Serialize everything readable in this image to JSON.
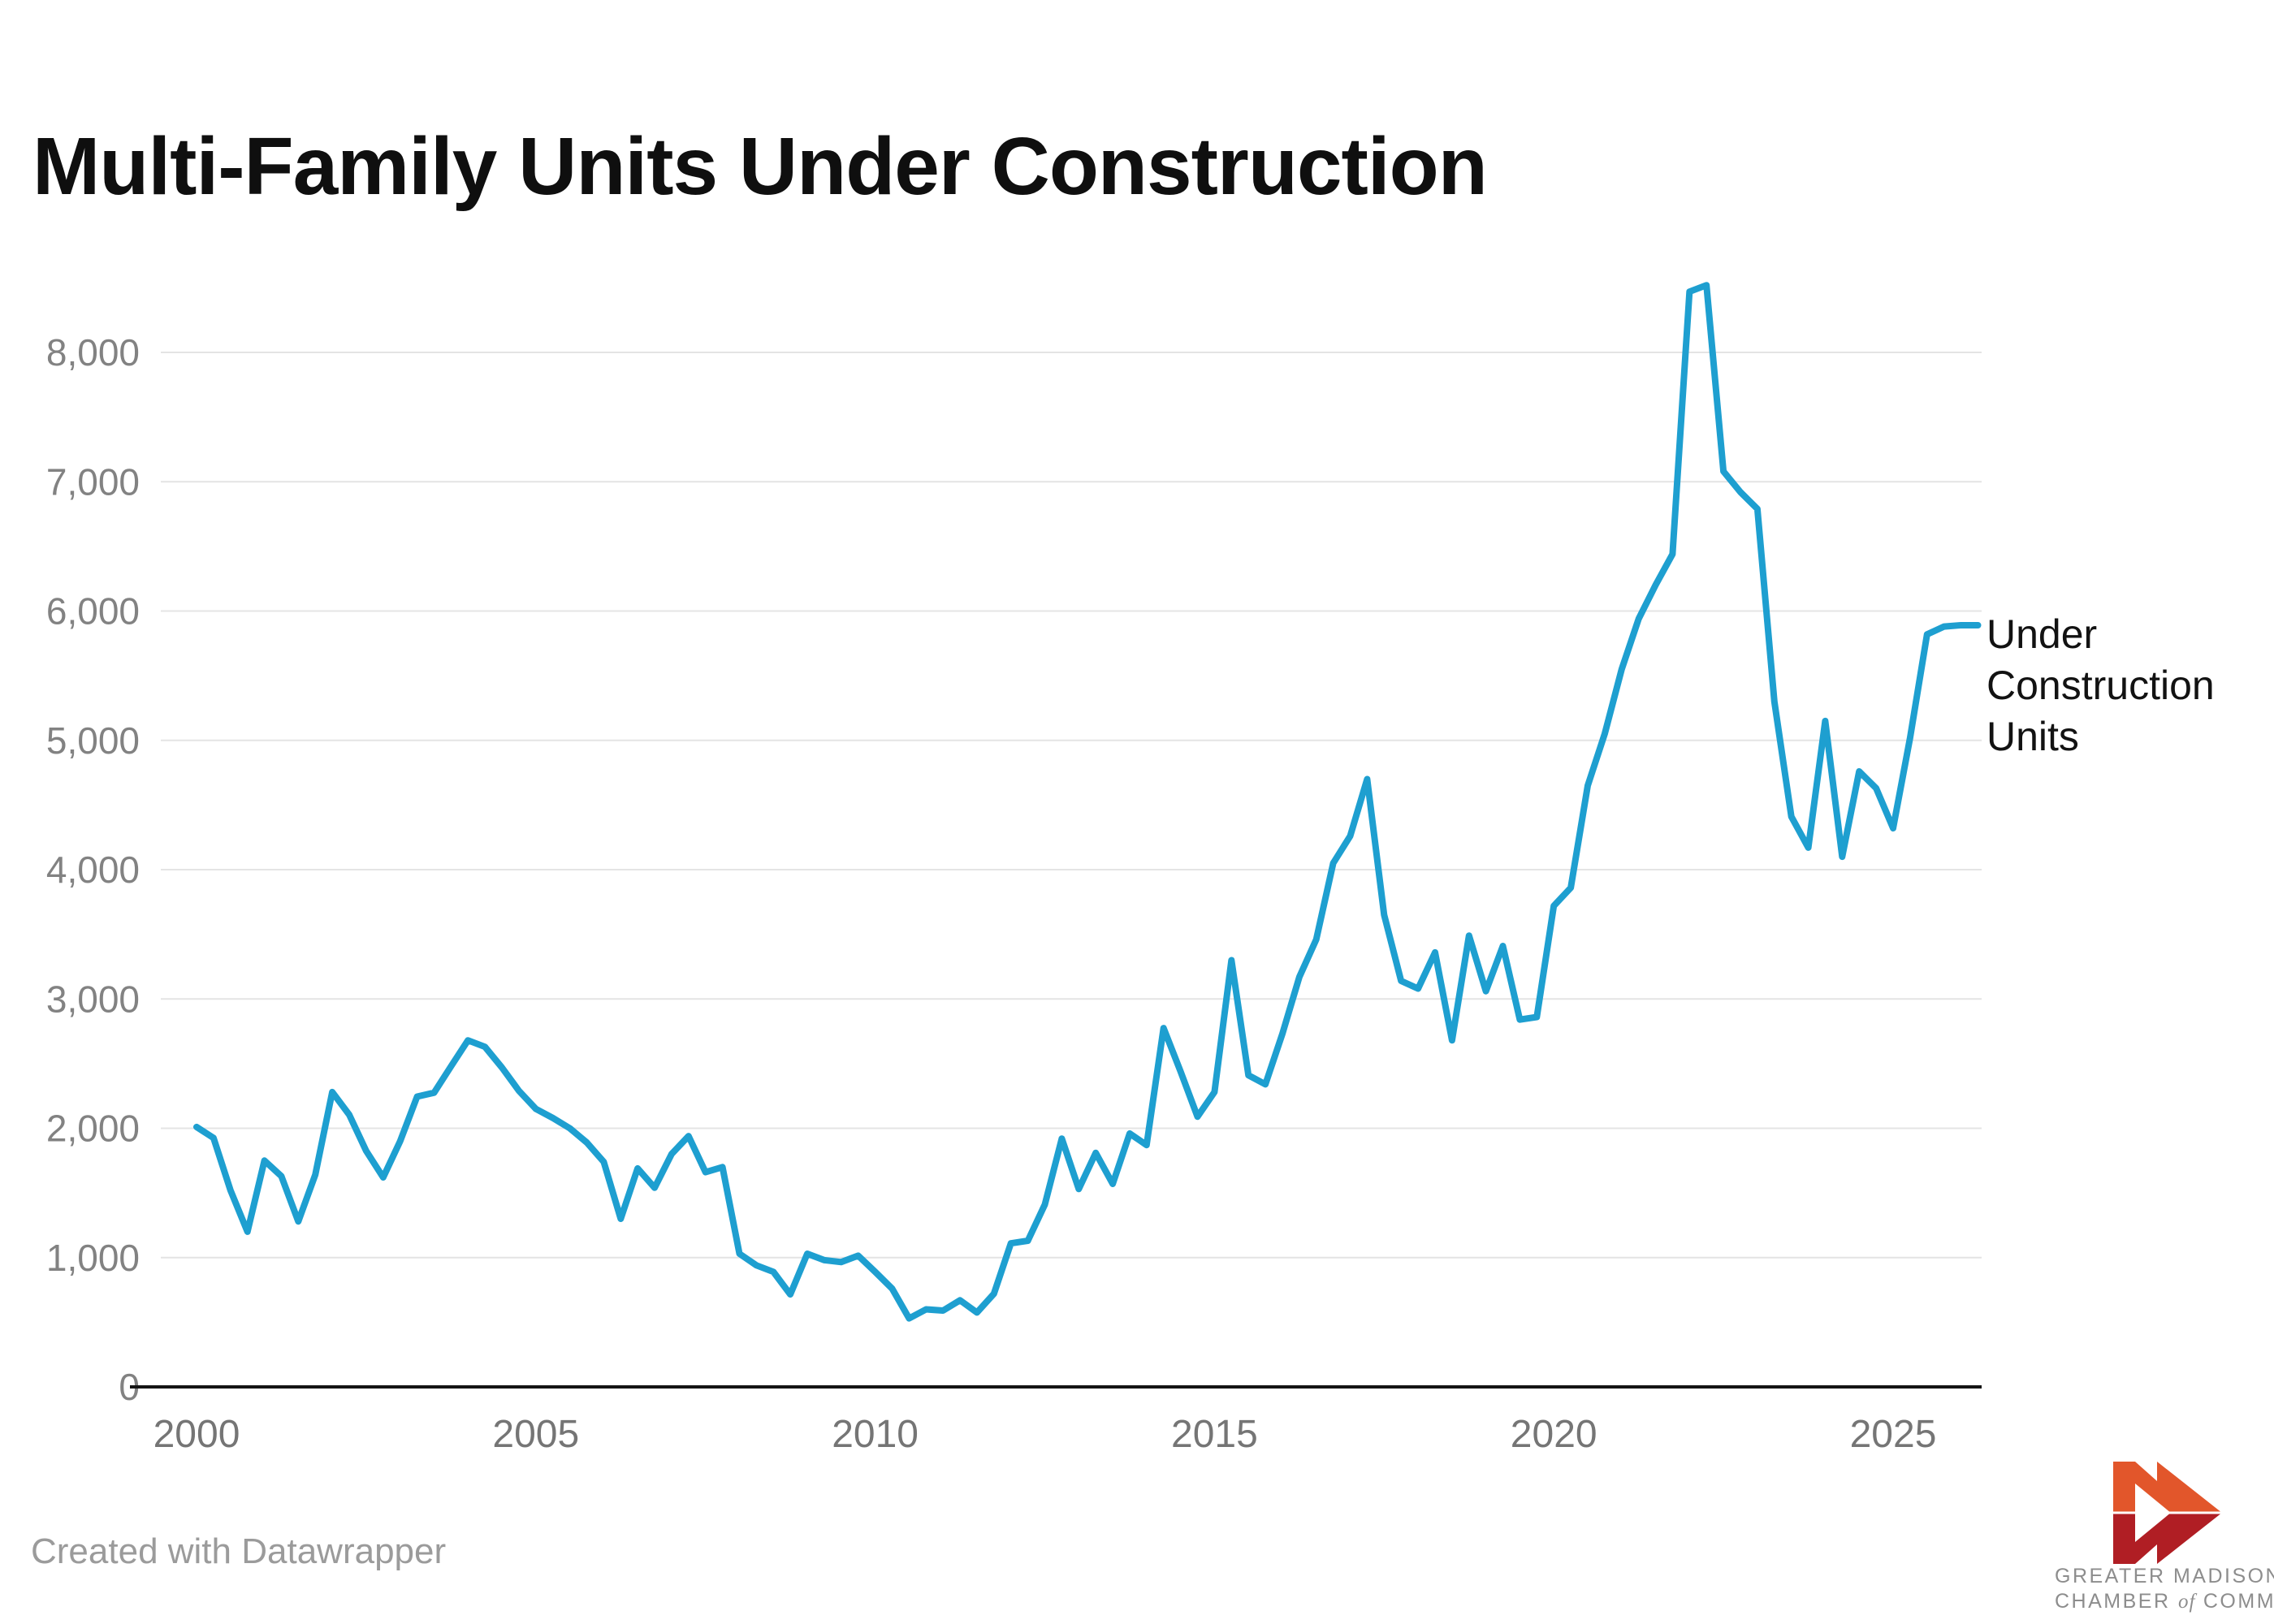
{
  "title": "Multi-Family Units Under Construction",
  "legend": {
    "label": "Under Construction Units",
    "label_lines": [
      "Under",
      "Construction",
      "Units"
    ]
  },
  "footer": {
    "credit": "Created with Datawrapper"
  },
  "logo": {
    "line1": "GREATER MADISON",
    "line2_pre": "CHAMBER ",
    "line2_mid": "of",
    "line2_post": " COMMERCE"
  },
  "colors": {
    "line": "#1E9FD0",
    "grid": "#e4e4e4",
    "axis": "#141414",
    "x_tick_label": "#757575",
    "y_tick_label": "#828282",
    "title": "#0f0f0f",
    "footer": "#9b9b9b",
    "logo_orange": "#E2562B",
    "logo_red": "#B01E24",
    "logo_text": "#8d8d8d"
  },
  "chart_data": {
    "type": "line",
    "title": "Multi-Family Units Under Construction",
    "series_name": "Under Construction Units",
    "xlabel": "",
    "ylabel": "",
    "x_start": 2000,
    "x_step": 0.25,
    "xlim": [
      2000,
      2026.5
    ],
    "ylim": [
      0,
      8600
    ],
    "grid": true,
    "legend_position": "right-of-line-end",
    "x_ticks": [
      2000,
      2005,
      2010,
      2015,
      2020,
      2025
    ],
    "x_tick_labels": [
      "2000",
      "2005",
      "2010",
      "2015",
      "2020",
      "2025"
    ],
    "y_ticks": [
      0,
      1000,
      2000,
      3000,
      4000,
      5000,
      6000,
      7000,
      8000
    ],
    "y_tick_labels": [
      "0",
      "1,000",
      "2,000",
      "3,000",
      "4,000",
      "5,000",
      "6,000",
      "7,000",
      "8,000"
    ],
    "values": [
      2010,
      1925,
      1520,
      1200,
      1750,
      1630,
      1280,
      1640,
      2280,
      2105,
      1825,
      1620,
      1900,
      2245,
      2275,
      2480,
      2680,
      2630,
      2470,
      2290,
      2150,
      2080,
      2000,
      1890,
      1740,
      1300,
      1690,
      1540,
      1800,
      1940,
      1660,
      1700,
      1030,
      940,
      890,
      715,
      1030,
      980,
      965,
      1015,
      890,
      760,
      530,
      600,
      590,
      670,
      575,
      720,
      1110,
      1130,
      1410,
      1920,
      1530,
      1810,
      1570,
      1960,
      1870,
      2775,
      2440,
      2090,
      2280,
      3300,
      2410,
      2340,
      2730,
      3170,
      3460,
      4050,
      4260,
      4700,
      3650,
      3140,
      3080,
      3360,
      2680,
      3490,
      3060,
      3410,
      2840,
      2860,
      3720,
      3860,
      4650,
      5050,
      5550,
      5940,
      6200,
      6440,
      8470,
      8520,
      7080,
      6920,
      6790,
      5300,
      4410,
      4170,
      5150,
      4100,
      4760,
      4630,
      4320,
      5020,
      5820,
      5880,
      5890,
      5890
    ]
  }
}
